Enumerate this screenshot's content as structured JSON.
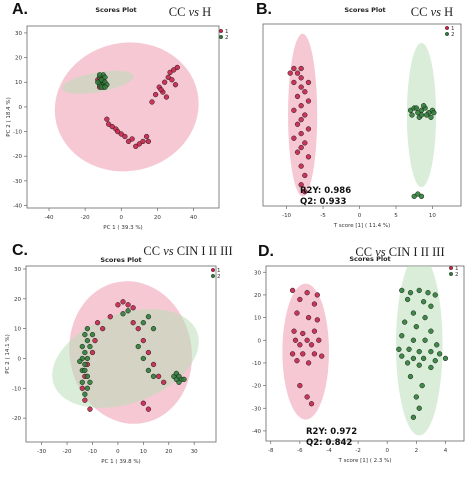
{
  "colors": {
    "class1_fill": "#c8254d",
    "class2_fill": "#2f7d3a",
    "ellipse1": "#ef9aae",
    "ellipse2": "#b9dfb8",
    "ellipse_overlap": "#d9c7a6",
    "header_text": "#222222",
    "axis": "#666666"
  },
  "chart_data": [
    {
      "panel": "A.",
      "type": "scatter",
      "title": "Scores Plot",
      "header": "CC vs H",
      "xlabel": "PC 1 ( 39.3 %)",
      "ylabel": "PC 2 ( 18.4 %)",
      "xlim": [
        -45,
        48
      ],
      "ylim": [
        -41,
        32
      ],
      "xticks": [
        "-40",
        "-20",
        "0",
        "20",
        "40"
      ],
      "xtick_values": [
        -40,
        -20,
        0,
        20,
        40
      ],
      "yticks": [
        "30",
        "20",
        "10",
        "0",
        "-10",
        "-20",
        "-30",
        "-40"
      ],
      "ytick_values": [
        30,
        20,
        10,
        0,
        -10,
        -20,
        -30,
        -40
      ],
      "legend": [
        "1",
        "2"
      ],
      "grid": false,
      "ellipses": [
        {
          "class": "1",
          "cx": 3,
          "cy": 0,
          "rx": 40,
          "ry": 26,
          "rotate": -12
        },
        {
          "class": "2",
          "cx": -13,
          "cy": 10,
          "rx": 20,
          "ry": 4,
          "rotate": -10
        }
      ],
      "series": [
        {
          "name": "1",
          "points": [
            [
              -12,
              10
            ],
            [
              -11,
              12
            ],
            [
              -12,
              8
            ],
            [
              -10,
              11
            ],
            [
              -11,
              9
            ],
            [
              -13,
              11
            ],
            [
              -8,
              -5
            ],
            [
              -7,
              -7
            ],
            [
              -5,
              -8
            ],
            [
              -3,
              -9
            ],
            [
              -2,
              -10
            ],
            [
              0,
              -11
            ],
            [
              2,
              -12
            ],
            [
              4,
              -14
            ],
            [
              6,
              -13
            ],
            [
              8,
              -16
            ],
            [
              10,
              -15
            ],
            [
              12,
              -14
            ],
            [
              14,
              -12
            ],
            [
              15,
              -14
            ],
            [
              17,
              2
            ],
            [
              19,
              5
            ],
            [
              21,
              8
            ],
            [
              23,
              6
            ],
            [
              24,
              10
            ],
            [
              26,
              12
            ],
            [
              27,
              14
            ],
            [
              28,
              11
            ],
            [
              29,
              15
            ],
            [
              31,
              16
            ],
            [
              30,
              9
            ],
            [
              25,
              4
            ],
            [
              22,
              7
            ]
          ]
        },
        {
          "name": "2",
          "points": [
            [
              -12,
              12
            ],
            [
              -11,
              10
            ],
            [
              -10,
              9
            ],
            [
              -12,
              9
            ],
            [
              -11,
              11
            ],
            [
              -10,
              13
            ],
            [
              -9,
              10
            ],
            [
              -10,
              8
            ],
            [
              -11,
              8
            ],
            [
              -13,
              10
            ],
            [
              -9,
              12
            ],
            [
              -12,
              13
            ],
            [
              -8,
              9
            ],
            [
              -9,
              8
            ]
          ]
        }
      ]
    },
    {
      "panel": "B.",
      "type": "scatter",
      "title": "Scores Plot",
      "header": "CC vs H",
      "xlabel": "T score [1] ( 11.4 %)",
      "ylabel": "",
      "xlim": [
        -12,
        12
      ],
      "ylim": [
        -40,
        40
      ],
      "xticks": [
        "-10",
        "-5",
        "0",
        "5",
        "10"
      ],
      "xtick_values": [
        -10,
        -5,
        0,
        5,
        10
      ],
      "yticks": [],
      "ytick_values": [],
      "legend": [
        "1",
        "2"
      ],
      "grid": false,
      "annotations": [
        "R2Y: 0.986",
        "Q2: 0.933"
      ],
      "ellipses": [
        {
          "class": "1",
          "cx": -7.8,
          "cy": 0,
          "rx": 2.0,
          "ry": 35,
          "rotate": 0
        },
        {
          "class": "2",
          "cx": 8.5,
          "cy": 0,
          "rx": 2.0,
          "ry": 31,
          "rotate": 0
        }
      ],
      "series": [
        {
          "name": "1",
          "points": [
            [
              -9,
              20
            ],
            [
              -8.5,
              18
            ],
            [
              -8,
              16
            ],
            [
              -9,
              14
            ],
            [
              -8,
              12
            ],
            [
              -7.5,
              10
            ],
            [
              -8.5,
              8
            ],
            [
              -7,
              6
            ],
            [
              -8,
              4
            ],
            [
              -9,
              2
            ],
            [
              -7.5,
              0
            ],
            [
              -8,
              -2
            ],
            [
              -8.5,
              -4
            ],
            [
              -7,
              -6
            ],
            [
              -8,
              -8
            ],
            [
              -9,
              -10
            ],
            [
              -7.5,
              -12
            ],
            [
              -8,
              -14
            ],
            [
              -8.5,
              -16
            ],
            [
              -7,
              -18
            ],
            [
              -8,
              -22
            ],
            [
              -7.5,
              -26
            ],
            [
              -8,
              -30
            ],
            [
              -7.5,
              -33
            ],
            [
              -9.5,
              18
            ],
            [
              -8,
              20
            ],
            [
              -7,
              14
            ]
          ]
        },
        {
          "name": "2",
          "points": [
            [
              7,
              2
            ],
            [
              7.5,
              3
            ],
            [
              8,
              1
            ],
            [
              8.5,
              2
            ],
            [
              9,
              3
            ],
            [
              9.5,
              1
            ],
            [
              10,
              2
            ],
            [
              7.2,
              0
            ],
            [
              8.2,
              -1
            ],
            [
              9.2,
              0
            ],
            [
              10.2,
              1
            ],
            [
              8.8,
              4
            ],
            [
              7.8,
              3
            ],
            [
              9.8,
              -1
            ],
            [
              8.5,
              0
            ],
            [
              7.5,
              -35
            ],
            [
              8,
              -34
            ],
            [
              8.5,
              -35
            ]
          ]
        }
      ]
    },
    {
      "panel": "C.",
      "type": "scatter",
      "title": "Scores Plot",
      "header": "CC vs CIN I II III",
      "xlabel": "PC 1 ( 39.8 %)",
      "ylabel": "PC 2 ( 14.1 %)",
      "xlim": [
        -33,
        37
      ],
      "ylim": [
        -28,
        31
      ],
      "xticks": [
        "-30",
        "-20",
        "-10",
        "0",
        "10",
        "20",
        "30"
      ],
      "xtick_values": [
        -30,
        -20,
        -10,
        0,
        10,
        20,
        30
      ],
      "yticks": [
        "30",
        "20",
        "10",
        "0",
        "-10",
        "-20"
      ],
      "ytick_values": [
        30,
        20,
        10,
        0,
        -10,
        -20
      ],
      "legend": [
        "1",
        "2"
      ],
      "grid": false,
      "ellipses": [
        {
          "class": "1",
          "cx": 5,
          "cy": 2,
          "rx": 24,
          "ry": 24,
          "rotate": -10
        },
        {
          "class": "2",
          "cx": 3,
          "cy": 0,
          "rx": 30,
          "ry": 15,
          "rotate": -20
        }
      ],
      "series": [
        {
          "name": "1",
          "points": [
            [
              2,
              19
            ],
            [
              4,
              18
            ],
            [
              6,
              17
            ],
            [
              0,
              18
            ],
            [
              -3,
              14
            ],
            [
              -6,
              10
            ],
            [
              -9,
              6
            ],
            [
              -10,
              2
            ],
            [
              -12,
              -2
            ],
            [
              -13,
              -6
            ],
            [
              -14,
              -10
            ],
            [
              -13,
              -14
            ],
            [
              -11,
              -17
            ],
            [
              8,
              10
            ],
            [
              10,
              6
            ],
            [
              12,
              2
            ],
            [
              14,
              -2
            ],
            [
              16,
              -6
            ],
            [
              18,
              -8
            ],
            [
              10,
              -15
            ],
            [
              12,
              -17
            ],
            [
              6,
              12
            ],
            [
              -8,
              12
            ]
          ]
        },
        {
          "name": "2",
          "points": [
            [
              -14,
              -4
            ],
            [
              -13,
              -2
            ],
            [
              -14,
              0
            ],
            [
              -13,
              2
            ],
            [
              -14,
              4
            ],
            [
              -12,
              6
            ],
            [
              -13,
              8
            ],
            [
              -12,
              10
            ],
            [
              -11,
              -8
            ],
            [
              -12,
              -10
            ],
            [
              -13,
              -12
            ],
            [
              -14,
              -8
            ],
            [
              -12,
              -6
            ],
            [
              -13,
              -4
            ],
            [
              -12,
              0
            ],
            [
              -11,
              4
            ],
            [
              -10,
              8
            ],
            [
              -15,
              -1
            ],
            [
              22,
              -6
            ],
            [
              23,
              -5
            ],
            [
              24,
              -6
            ],
            [
              25,
              -7
            ],
            [
              24,
              -8
            ],
            [
              26,
              -7
            ],
            [
              23,
              -7
            ],
            [
              12,
              14
            ],
            [
              10,
              12
            ],
            [
              14,
              10
            ],
            [
              4,
              16
            ],
            [
              2,
              15
            ],
            [
              8,
              4
            ],
            [
              10,
              0
            ],
            [
              12,
              -4
            ],
            [
              14,
              -6
            ]
          ]
        }
      ]
    },
    {
      "panel": "D.",
      "type": "scatter",
      "title": "Scores Plot",
      "header": "CC vs CIN I II III",
      "xlabel": "T score [1] ( 2.3 %)",
      "ylabel": "",
      "xlim": [
        -8.6,
        5
      ],
      "ylim": [
        -44,
        31
      ],
      "xticks": [
        "-8",
        "-6",
        "-4",
        "-2",
        "0",
        "2",
        "4"
      ],
      "xtick_values": [
        -8,
        -6,
        -4,
        -2,
        0,
        2,
        4
      ],
      "yticks": [
        "30",
        "20",
        "10",
        "0",
        "-10",
        "-20",
        "-30",
        "-40"
      ],
      "ytick_values": [
        30,
        20,
        10,
        0,
        -10,
        -20,
        -30,
        -40
      ],
      "legend": [
        "1",
        "2"
      ],
      "grid": false,
      "annotations": [
        "R2Y: 0.972",
        "Q2: 0.842"
      ],
      "ellipses": [
        {
          "class": "1",
          "cx": -5.6,
          "cy": -5,
          "rx": 1.6,
          "ry": 30,
          "rotate": 0
        },
        {
          "class": "2",
          "cx": 2.2,
          "cy": -2,
          "rx": 1.6,
          "ry": 40,
          "rotate": 0
        }
      ],
      "series": [
        {
          "name": "1",
          "points": [
            [
              -6.5,
              22
            ],
            [
              -5.5,
              21
            ],
            [
              -4.8,
              20
            ],
            [
              -6,
              18
            ],
            [
              -5,
              16
            ],
            [
              -6.2,
              12
            ],
            [
              -5.4,
              10
            ],
            [
              -4.8,
              9
            ],
            [
              -6.4,
              4
            ],
            [
              -5.8,
              3
            ],
            [
              -5,
              4
            ],
            [
              -6.3,
              0
            ],
            [
              -5.5,
              0
            ],
            [
              -4.7,
              0
            ],
            [
              -6,
              -2
            ],
            [
              -5.2,
              -2
            ],
            [
              -6.5,
              -6
            ],
            [
              -5.8,
              -6
            ],
            [
              -5,
              -6
            ],
            [
              -4.5,
              -7
            ],
            [
              -6.2,
              -9
            ],
            [
              -5.4,
              -10
            ],
            [
              -6,
              -20
            ],
            [
              -5.5,
              -25
            ],
            [
              -5.2,
              -28
            ]
          ]
        },
        {
          "name": "2",
          "points": [
            [
              1,
              22
            ],
            [
              1.6,
              21
            ],
            [
              2.2,
              22
            ],
            [
              2.8,
              21
            ],
            [
              3.3,
              20
            ],
            [
              1.4,
              18
            ],
            [
              2.5,
              17
            ],
            [
              3,
              15
            ],
            [
              1.8,
              12
            ],
            [
              2.6,
              10
            ],
            [
              1.2,
              8
            ],
            [
              2,
              6
            ],
            [
              3,
              4
            ],
            [
              1,
              2
            ],
            [
              1.8,
              0
            ],
            [
              2.6,
              0
            ],
            [
              3.4,
              -2
            ],
            [
              0.8,
              -4
            ],
            [
              1.5,
              -4
            ],
            [
              2.2,
              -5
            ],
            [
              3,
              -5
            ],
            [
              3.6,
              -6
            ],
            [
              1,
              -7
            ],
            [
              1.8,
              -8
            ],
            [
              2.5,
              -8
            ],
            [
              3.3,
              -9
            ],
            [
              4,
              -8
            ],
            [
              1.4,
              -10
            ],
            [
              2.2,
              -11
            ],
            [
              3,
              -12
            ],
            [
              1.6,
              -16
            ],
            [
              2.4,
              -20
            ],
            [
              2,
              -25
            ],
            [
              2.2,
              -30
            ],
            [
              1.8,
              -34
            ]
          ]
        }
      ]
    }
  ]
}
